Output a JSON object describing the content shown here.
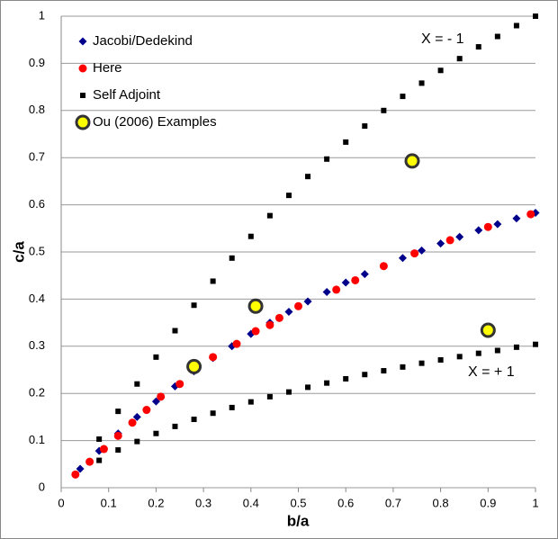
{
  "chart_data": {
    "type": "scatter",
    "x_label": "b/a",
    "y_label": "c/a",
    "xlim": [
      0,
      1
    ],
    "ylim": [
      0,
      1
    ],
    "xticks": [
      0,
      0.1,
      0.2,
      0.3,
      0.4,
      0.5,
      0.6,
      0.7,
      0.8,
      0.9,
      1
    ],
    "yticks": [
      0,
      0.1,
      0.2,
      0.3,
      0.4,
      0.5,
      0.6,
      0.7,
      0.8,
      0.9,
      1
    ],
    "grid": true,
    "legend": "upper left",
    "annotations": [
      "X = - 1",
      "X = + 1"
    ],
    "series": [
      {
        "name": "Jacobi/Dedekind",
        "color": "#00008b",
        "marker": "diamond",
        "x": [
          0.04,
          0.08,
          0.12,
          0.16,
          0.2,
          0.24,
          0.28,
          0.32,
          0.36,
          0.4,
          0.44,
          0.48,
          0.52,
          0.56,
          0.6,
          0.64,
          0.68,
          0.72,
          0.76,
          0.8,
          0.84,
          0.88,
          0.92,
          0.96,
          1.0
        ],
        "y": [
          0.04,
          0.078,
          0.115,
          0.15,
          0.183,
          0.215,
          0.247,
          0.275,
          0.3,
          0.326,
          0.35,
          0.373,
          0.395,
          0.415,
          0.435,
          0.453,
          0.47,
          0.487,
          0.503,
          0.518,
          0.532,
          0.546,
          0.559,
          0.571,
          0.583
        ]
      },
      {
        "name": "Here",
        "color": "#ff0000",
        "marker": "circle",
        "x": [
          0.03,
          0.06,
          0.09,
          0.12,
          0.15,
          0.18,
          0.21,
          0.25,
          0.32,
          0.37,
          0.41,
          0.44,
          0.46,
          0.5,
          0.58,
          0.62,
          0.68,
          0.745,
          0.82,
          0.9,
          0.99
        ],
        "y": [
          0.028,
          0.055,
          0.082,
          0.11,
          0.138,
          0.165,
          0.193,
          0.22,
          0.277,
          0.305,
          0.332,
          0.345,
          0.36,
          0.385,
          0.42,
          0.44,
          0.47,
          0.497,
          0.525,
          0.553,
          0.58
        ]
      },
      {
        "name": "Self Adjoint",
        "color": "#000000",
        "marker": "square",
        "x": [
          0.08,
          0.12,
          0.16,
          0.2,
          0.24,
          0.28,
          0.32,
          0.36,
          0.4,
          0.44,
          0.48,
          0.52,
          0.56,
          0.6,
          0.64,
          0.68,
          0.72,
          0.76,
          0.8,
          0.84,
          0.88,
          0.92,
          0.96,
          1.0,
          0.08,
          0.12,
          0.16,
          0.2,
          0.24,
          0.28,
          0.32,
          0.36,
          0.4,
          0.44,
          0.48,
          0.52,
          0.56,
          0.6,
          0.64,
          0.68,
          0.72,
          0.76,
          0.8,
          0.84,
          0.88,
          0.92,
          0.96,
          1.0
        ],
        "y": [
          0.103,
          0.162,
          0.22,
          0.277,
          0.333,
          0.387,
          0.438,
          0.487,
          0.533,
          0.577,
          0.62,
          0.66,
          0.697,
          0.733,
          0.767,
          0.8,
          0.83,
          0.858,
          0.885,
          0.91,
          0.935,
          0.957,
          0.98,
          1.0,
          0.058,
          0.08,
          0.098,
          0.115,
          0.13,
          0.145,
          0.158,
          0.17,
          0.182,
          0.193,
          0.203,
          0.213,
          0.222,
          0.231,
          0.24,
          0.248,
          0.256,
          0.264,
          0.271,
          0.278,
          0.285,
          0.291,
          0.298,
          0.304
        ]
      },
      {
        "name": "Ou (2006) Examples",
        "color": "#ffff00",
        "marker": "ring",
        "x": [
          0.28,
          0.41,
          0.74,
          0.9
        ],
        "y": [
          0.257,
          0.385,
          0.693,
          0.334
        ]
      }
    ]
  }
}
